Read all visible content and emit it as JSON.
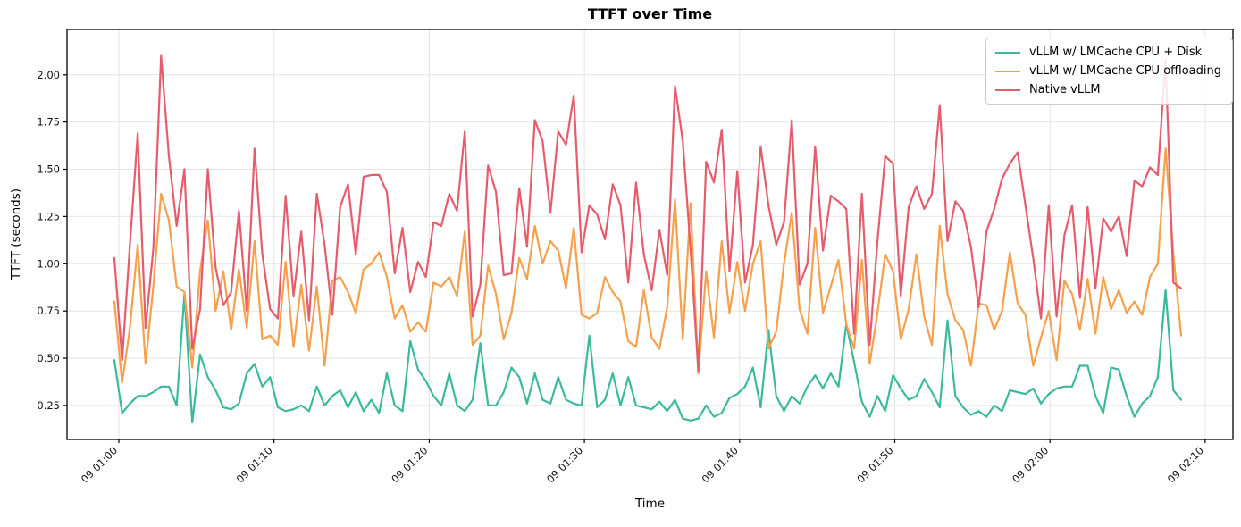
{
  "chart_data": {
    "type": "line",
    "title": "TTFT over Time",
    "xlabel": "Time",
    "ylabel": "TTFT (seconds)",
    "grid": true,
    "legend_position": "upper right",
    "x_start": "09 01:00",
    "x_interval_seconds": 30,
    "x_tick_labels": [
      "09 01:00",
      "09 01:10",
      "09 01:20",
      "09 01:30",
      "09 01:40",
      "09 01:50",
      "09 02:00",
      "09 02:10"
    ],
    "y_ticks": [
      0.25,
      0.5,
      0.75,
      1.0,
      1.25,
      1.5,
      1.75,
      2.0
    ],
    "y_tick_labels": [
      "0.25",
      "0.50",
      "0.75",
      "1.00",
      "1.25",
      "1.50",
      "1.75",
      "2.00"
    ],
    "ylim": [
      0.07,
      2.24
    ],
    "colors": {
      "background": "#ffffff",
      "gridline": "#e4e4e4",
      "axis": "#000000"
    },
    "series": [
      {
        "name": "vLLM w/ LMCache CPU + Disk",
        "color": "#3cb99c",
        "values": [
          0.49,
          0.21,
          0.26,
          0.3,
          0.3,
          0.32,
          0.35,
          0.35,
          0.25,
          0.84,
          0.16,
          0.52,
          0.4,
          0.33,
          0.24,
          0.23,
          0.26,
          0.42,
          0.47,
          0.35,
          0.4,
          0.24,
          0.22,
          0.23,
          0.25,
          0.22,
          0.35,
          0.25,
          0.3,
          0.33,
          0.24,
          0.32,
          0.22,
          0.28,
          0.21,
          0.42,
          0.25,
          0.22,
          0.59,
          0.44,
          0.38,
          0.3,
          0.25,
          0.42,
          0.25,
          0.22,
          0.28,
          0.58,
          0.25,
          0.25,
          0.32,
          0.45,
          0.4,
          0.26,
          0.42,
          0.28,
          0.26,
          0.4,
          0.28,
          0.26,
          0.25,
          0.62,
          0.24,
          0.28,
          0.42,
          0.25,
          0.4,
          0.25,
          0.24,
          0.23,
          0.27,
          0.22,
          0.28,
          0.18,
          0.17,
          0.18,
          0.25,
          0.19,
          0.21,
          0.29,
          0.31,
          0.35,
          0.45,
          0.24,
          0.65,
          0.3,
          0.22,
          0.3,
          0.26,
          0.35,
          0.41,
          0.34,
          0.42,
          0.35,
          0.68,
          0.48,
          0.27,
          0.19,
          0.3,
          0.22,
          0.41,
          0.34,
          0.28,
          0.3,
          0.39,
          0.32,
          0.24,
          0.7,
          0.3,
          0.24,
          0.2,
          0.22,
          0.19,
          0.25,
          0.22,
          0.33,
          0.32,
          0.31,
          0.34,
          0.26,
          0.31,
          0.34,
          0.35,
          0.35,
          0.46,
          0.46,
          0.3,
          0.21,
          0.45,
          0.44,
          0.3,
          0.19,
          0.26,
          0.3,
          0.4,
          0.86,
          0.33,
          0.28
        ]
      },
      {
        "name": "vLLM w/ LMCache CPU offloading",
        "color": "#f5a04c",
        "values": [
          0.8,
          0.37,
          0.66,
          1.1,
          0.47,
          0.88,
          1.37,
          1.23,
          0.88,
          0.85,
          0.45,
          0.96,
          1.23,
          0.75,
          0.96,
          0.65,
          0.97,
          0.66,
          1.12,
          0.6,
          0.62,
          0.57,
          1.01,
          0.56,
          0.89,
          0.54,
          0.88,
          0.46,
          0.91,
          0.93,
          0.85,
          0.74,
          0.97,
          1.0,
          1.06,
          0.93,
          0.71,
          0.78,
          0.64,
          0.69,
          0.64,
          0.9,
          0.88,
          0.93,
          0.83,
          1.17,
          0.57,
          0.62,
          0.99,
          0.84,
          0.6,
          0.74,
          1.03,
          0.92,
          1.2,
          1.0,
          1.12,
          1.07,
          0.87,
          1.19,
          0.73,
          0.71,
          0.74,
          0.93,
          0.85,
          0.8,
          0.59,
          0.56,
          0.86,
          0.61,
          0.55,
          0.77,
          1.34,
          0.6,
          1.32,
          0.42,
          0.96,
          0.61,
          1.12,
          0.74,
          1.01,
          0.75,
          1.0,
          1.12,
          0.55,
          0.64,
          1.0,
          1.27,
          0.76,
          0.63,
          1.19,
          0.74,
          0.88,
          1.02,
          0.68,
          0.55,
          1.02,
          0.47,
          0.74,
          1.05,
          0.96,
          0.6,
          0.76,
          1.05,
          0.72,
          0.57,
          1.2,
          0.84,
          0.7,
          0.65,
          0.46,
          0.79,
          0.78,
          0.65,
          0.75,
          1.06,
          0.79,
          0.73,
          0.46,
          0.61,
          0.75,
          0.49,
          0.91,
          0.84,
          0.65,
          0.92,
          0.63,
          0.93,
          0.76,
          0.86,
          0.74,
          0.8,
          0.73,
          0.93,
          1.0,
          1.61,
          1.05,
          0.62
        ]
      },
      {
        "name": "Native vLLM",
        "color": "#e55c6c",
        "values": [
          1.03,
          0.49,
          1.1,
          1.69,
          0.66,
          1.08,
          2.1,
          1.57,
          1.2,
          1.5,
          0.55,
          0.76,
          1.5,
          0.98,
          0.78,
          0.85,
          1.28,
          0.75,
          1.61,
          1.05,
          0.76,
          0.71,
          1.36,
          0.83,
          1.17,
          0.7,
          1.37,
          1.1,
          0.73,
          1.3,
          1.42,
          1.05,
          1.46,
          1.47,
          1.47,
          1.38,
          0.95,
          1.19,
          0.85,
          1.01,
          0.93,
          1.22,
          1.2,
          1.37,
          1.28,
          1.7,
          0.72,
          0.89,
          1.52,
          1.38,
          0.94,
          0.95,
          1.4,
          1.09,
          1.76,
          1.65,
          1.27,
          1.7,
          1.63,
          1.89,
          1.06,
          1.31,
          1.26,
          1.13,
          1.42,
          1.31,
          0.9,
          1.43,
          1.05,
          0.86,
          1.18,
          0.94,
          1.94,
          1.65,
          1.08,
          0.43,
          1.54,
          1.43,
          1.71,
          0.96,
          1.49,
          0.9,
          1.1,
          1.62,
          1.31,
          1.1,
          1.22,
          1.76,
          0.89,
          1.0,
          1.62,
          1.07,
          1.36,
          1.33,
          1.29,
          0.63,
          1.37,
          0.57,
          1.12,
          1.57,
          1.53,
          0.83,
          1.3,
          1.41,
          1.29,
          1.37,
          1.84,
          1.12,
          1.33,
          1.28,
          1.09,
          0.77,
          1.17,
          1.29,
          1.45,
          1.53,
          1.59,
          1.31,
          1.03,
          0.71,
          1.31,
          0.72,
          1.15,
          1.31,
          0.82,
          1.3,
          0.87,
          1.24,
          1.17,
          1.25,
          1.04,
          1.44,
          1.41,
          1.51,
          1.47,
          2.08,
          0.9,
          0.87
        ]
      }
    ]
  }
}
